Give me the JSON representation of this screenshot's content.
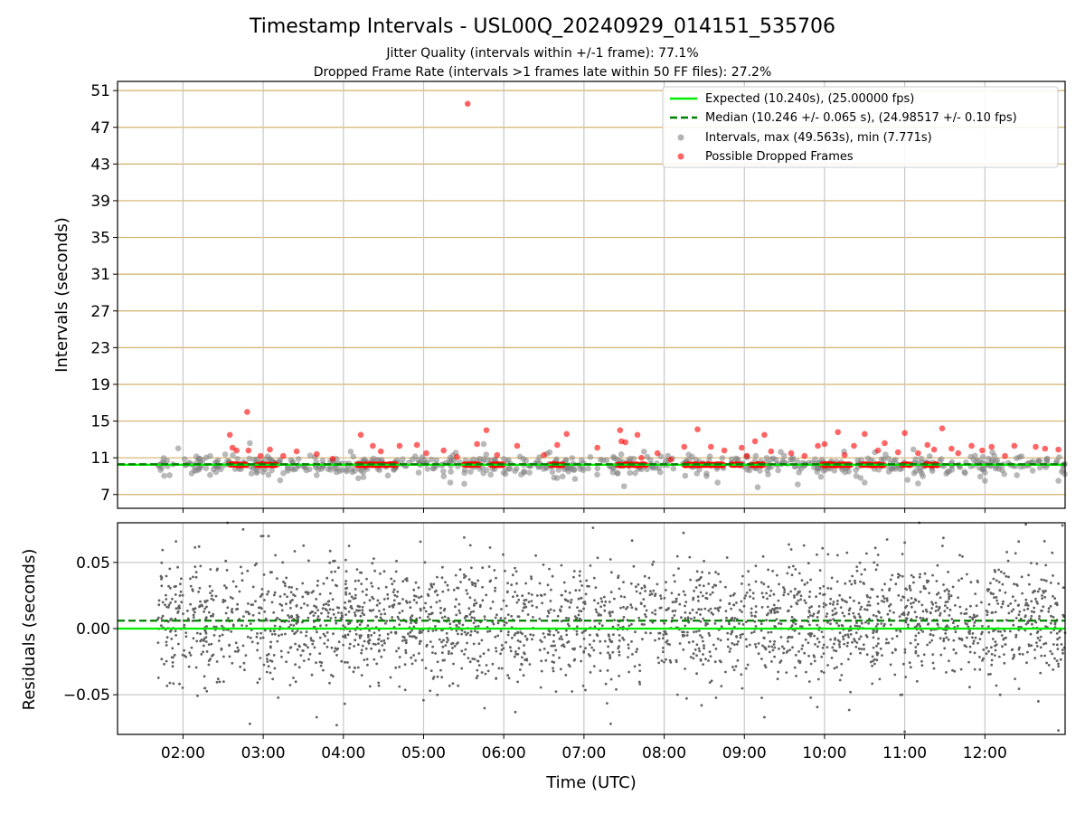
{
  "figure": {
    "title": "Timestamp Intervals - USL00Q_20240929_014151_535706",
    "subtitle1": "Jitter Quality (intervals within +/-1 frame): 77.1%",
    "subtitle2": "Dropped Frame Rate (intervals >1 frames late within 50 FF files): 27.2%"
  },
  "colors": {
    "expected": "#00ee00",
    "median": "#008000",
    "intervals": "#808080",
    "dropped": "#ff0000",
    "hgrid": "#d2b26c",
    "vgrid": "#c8c8c8",
    "residual_points": "#606060"
  },
  "chart_data": [
    {
      "type": "scatter",
      "title": "",
      "xlabel": "",
      "ylabel": "Intervals (seconds)",
      "x_range": [
        "01:11",
        "13:00"
      ],
      "ylim": [
        5.5,
        52
      ],
      "x_ticks": [
        "02:00",
        "03:00",
        "04:00",
        "05:00",
        "06:00",
        "07:00",
        "08:00",
        "09:00",
        "10:00",
        "11:00",
        "12:00"
      ],
      "y_ticks": [
        7,
        11,
        15,
        19,
        23,
        27,
        31,
        35,
        39,
        43,
        47,
        51
      ],
      "grid": true,
      "legend_position": "top-right",
      "legend": [
        {
          "label": "Expected (10.240s), (25.00000 fps)",
          "kind": "line-solid",
          "color": "#00ee00"
        },
        {
          "label": "Median (10.246 +/- 0.065 s), (24.98517 +/- 0.10 fps)",
          "kind": "line-dashed",
          "color": "#008000"
        },
        {
          "label": "Intervals, max (49.563s), min (7.771s)",
          "kind": "dot",
          "color": "#808080"
        },
        {
          "label": "Possible Dropped Frames",
          "kind": "dot",
          "color": "#ff0000"
        }
      ],
      "expected_line": 10.24,
      "median_line": 10.246,
      "series": [
        {
          "name": "Intervals, max (49.563s), min (7.771s)",
          "x_start": "01:41",
          "x_end": "13:00",
          "center": 10.24,
          "spread_min": 7.771,
          "spread_max": 12.5,
          "sample_points": [
            {
              "x": "01:42",
              "y": 10.2
            },
            {
              "x": "02:10",
              "y": 9.6
            },
            {
              "x": "02:50",
              "y": 12.6
            },
            {
              "x": "03:40",
              "y": 9.1
            },
            {
              "x": "04:15",
              "y": 8.9
            },
            {
              "x": "05:20",
              "y": 8.3
            },
            {
              "x": "05:45",
              "y": 12.5
            },
            {
              "x": "06:40",
              "y": 8.8
            },
            {
              "x": "07:30",
              "y": 7.9
            },
            {
              "x": "08:40",
              "y": 8.3
            },
            {
              "x": "09:10",
              "y": 7.8
            },
            {
              "x": "09:40",
              "y": 8.1
            },
            {
              "x": "10:30",
              "y": 8.3
            },
            {
              "x": "11:10",
              "y": 8.2
            },
            {
              "x": "12:00",
              "y": 8.5
            },
            {
              "x": "12:55",
              "y": 8.5
            }
          ]
        },
        {
          "name": "Possible Dropped Frames",
          "clusters": [
            {
              "from": "02:35",
              "to": "02:48",
              "y": 10.24
            },
            {
              "from": "02:55",
              "to": "03:10",
              "y": 10.24
            },
            {
              "from": "04:10",
              "to": "04:40",
              "y": 10.24
            },
            {
              "from": "05:30",
              "to": "05:42",
              "y": 10.24
            },
            {
              "from": "05:50",
              "to": "06:00",
              "y": 10.24
            },
            {
              "from": "06:35",
              "to": "06:45",
              "y": 10.24
            },
            {
              "from": "07:25",
              "to": "07:47",
              "y": 10.24
            },
            {
              "from": "08:15",
              "to": "08:45",
              "y": 10.24
            },
            {
              "from": "08:50",
              "to": "08:58",
              "y": 10.24
            },
            {
              "from": "09:05",
              "to": "09:15",
              "y": 10.24
            },
            {
              "from": "09:58",
              "to": "10:20",
              "y": 10.24
            },
            {
              "from": "10:27",
              "to": "10:45",
              "y": 10.24
            },
            {
              "from": "10:58",
              "to": "11:05",
              "y": 10.24
            },
            {
              "from": "11:15",
              "to": "11:25",
              "y": 10.24
            }
          ],
          "points": [
            {
              "x": "05:33",
              "y": 49.563
            },
            {
              "x": "02:48",
              "y": 16.0
            },
            {
              "x": "02:35",
              "y": 13.5
            },
            {
              "x": "02:37",
              "y": 12.1
            },
            {
              "x": "02:40",
              "y": 11.8
            },
            {
              "x": "02:49",
              "y": 11.8
            },
            {
              "x": "02:58",
              "y": 11.2
            },
            {
              "x": "03:05",
              "y": 11.9
            },
            {
              "x": "03:15",
              "y": 11.2
            },
            {
              "x": "03:25",
              "y": 11.7
            },
            {
              "x": "03:40",
              "y": 11.4
            },
            {
              "x": "03:52",
              "y": 10.9
            },
            {
              "x": "04:13",
              "y": 13.5
            },
            {
              "x": "04:22",
              "y": 12.3
            },
            {
              "x": "04:28",
              "y": 11.7
            },
            {
              "x": "04:42",
              "y": 12.3
            },
            {
              "x": "04:55",
              "y": 12.4
            },
            {
              "x": "05:02",
              "y": 11.5
            },
            {
              "x": "05:15",
              "y": 11.8
            },
            {
              "x": "05:25",
              "y": 11.1
            },
            {
              "x": "05:40",
              "y": 12.5
            },
            {
              "x": "05:47",
              "y": 14.0
            },
            {
              "x": "05:55",
              "y": 11.3
            },
            {
              "x": "06:10",
              "y": 12.3
            },
            {
              "x": "06:30",
              "y": 11.3
            },
            {
              "x": "06:40",
              "y": 12.4
            },
            {
              "x": "06:47",
              "y": 13.6
            },
            {
              "x": "07:10",
              "y": 12.1
            },
            {
              "x": "07:27",
              "y": 14.0
            },
            {
              "x": "07:28",
              "y": 12.8
            },
            {
              "x": "07:31",
              "y": 12.7
            },
            {
              "x": "07:40",
              "y": 13.5
            },
            {
              "x": "07:43",
              "y": 11.0
            },
            {
              "x": "07:55",
              "y": 11.5
            },
            {
              "x": "08:05",
              "y": 10.8
            },
            {
              "x": "08:15",
              "y": 12.2
            },
            {
              "x": "08:25",
              "y": 14.1
            },
            {
              "x": "08:35",
              "y": 12.2
            },
            {
              "x": "08:45",
              "y": 11.8
            },
            {
              "x": "08:58",
              "y": 12.1
            },
            {
              "x": "09:02",
              "y": 11.2
            },
            {
              "x": "09:08",
              "y": 12.8
            },
            {
              "x": "09:15",
              "y": 13.5
            },
            {
              "x": "09:20",
              "y": 11.7
            },
            {
              "x": "09:35",
              "y": 11.5
            },
            {
              "x": "09:45",
              "y": 11.2
            },
            {
              "x": "09:55",
              "y": 12.3
            },
            {
              "x": "10:00",
              "y": 12.5
            },
            {
              "x": "10:10",
              "y": 13.8
            },
            {
              "x": "10:15",
              "y": 11.3
            },
            {
              "x": "10:22",
              "y": 12.3
            },
            {
              "x": "10:30",
              "y": 13.6
            },
            {
              "x": "10:40",
              "y": 11.8
            },
            {
              "x": "10:45",
              "y": 12.6
            },
            {
              "x": "10:55",
              "y": 11.6
            },
            {
              "x": "11:00",
              "y": 13.7
            },
            {
              "x": "11:10",
              "y": 11.5
            },
            {
              "x": "11:17",
              "y": 12.4
            },
            {
              "x": "11:22",
              "y": 11.9
            },
            {
              "x": "11:28",
              "y": 14.2
            },
            {
              "x": "11:35",
              "y": 12.0
            },
            {
              "x": "11:40",
              "y": 11.5
            },
            {
              "x": "11:50",
              "y": 12.3
            },
            {
              "x": "11:58",
              "y": 11.8
            },
            {
              "x": "12:05",
              "y": 12.2
            },
            {
              "x": "12:15",
              "y": 11.2
            },
            {
              "x": "12:22",
              "y": 12.3
            },
            {
              "x": "12:38",
              "y": 12.2
            },
            {
              "x": "12:45",
              "y": 12.0
            },
            {
              "x": "12:55",
              "y": 11.9
            }
          ]
        }
      ]
    },
    {
      "type": "scatter",
      "title": "",
      "xlabel": "Time (UTC)",
      "ylabel": "Residuals (seconds)",
      "x_range": [
        "01:11",
        "13:00"
      ],
      "ylim": [
        -0.08,
        0.08
      ],
      "x_ticks": [
        "02:00",
        "03:00",
        "04:00",
        "05:00",
        "06:00",
        "07:00",
        "08:00",
        "09:00",
        "10:00",
        "11:00",
        "12:00"
      ],
      "y_ticks": [
        "−0.05",
        "0.00",
        "0.05"
      ],
      "y_tick_values": [
        -0.05,
        0.0,
        0.05
      ],
      "grid": true,
      "expected_line": 0.0,
      "median_line": 0.006,
      "series": [
        {
          "name": "",
          "x_start": "01:41",
          "x_end": "13:00",
          "center": 0.006,
          "std": 0.022,
          "sample_points": [
            {
              "x": "02:12",
              "y": 0.062
            },
            {
              "x": "02:45",
              "y": 0.075
            },
            {
              "x": "03:00",
              "y": 0.07
            },
            {
              "x": "02:50",
              "y": -0.072
            },
            {
              "x": "03:40",
              "y": -0.067
            },
            {
              "x": "03:55",
              "y": -0.073
            },
            {
              "x": "05:35",
              "y": 0.063
            },
            {
              "x": "07:20",
              "y": -0.072
            },
            {
              "x": "08:10",
              "y": -0.05
            },
            {
              "x": "08:28",
              "y": -0.058
            },
            {
              "x": "09:15",
              "y": -0.067
            },
            {
              "x": "11:00",
              "y": -0.078
            },
            {
              "x": "10:58",
              "y": -0.05
            },
            {
              "x": "11:00",
              "y": 0.065
            },
            {
              "x": "12:40",
              "y": -0.055
            },
            {
              "x": "12:55",
              "y": -0.077
            },
            {
              "x": "12:58",
              "y": 0.078
            }
          ]
        }
      ]
    }
  ]
}
